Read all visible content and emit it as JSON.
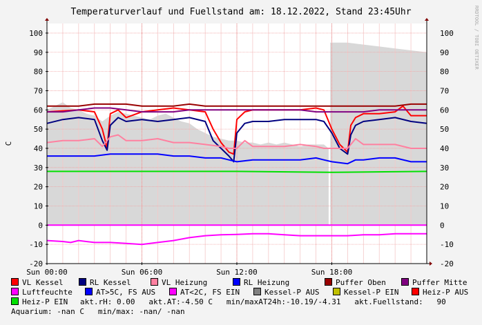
{
  "chart_data": {
    "type": "line",
    "title": "Temperaturverlauf und Fuellstand am: 18.12.2022, Stand 23:45Uhr",
    "ylabel": "C",
    "side_label": "RRDTOOL / TOBI OETIKER",
    "ylim": [
      -20,
      105
    ],
    "yticks": [
      -20,
      -10,
      0,
      10,
      20,
      30,
      40,
      50,
      60,
      70,
      80,
      90,
      100
    ],
    "xlim": [
      0,
      24
    ],
    "x_unit": "hours",
    "xticks": [
      {
        "x": 0,
        "label": "Sun 00:00"
      },
      {
        "x": 6,
        "label": "Sun 06:00"
      },
      {
        "x": 12,
        "label": "Sun 12:00"
      },
      {
        "x": 18,
        "label": "Sun 18:00"
      }
    ],
    "grid": true,
    "fill_series": {
      "name": "akt.Fuellstand",
      "color": "#d8d8d8",
      "points": [
        [
          0,
          60
        ],
        [
          0.5,
          62
        ],
        [
          1,
          64
        ],
        [
          1.5,
          61
        ],
        [
          2,
          60
        ],
        [
          2.5,
          58
        ],
        [
          3,
          57
        ],
        [
          3.5,
          54
        ],
        [
          4,
          57
        ],
        [
          4.5,
          59
        ],
        [
          5,
          58
        ],
        [
          5.5,
          57
        ],
        [
          6,
          56
        ],
        [
          6.5,
          55
        ],
        [
          7,
          57
        ],
        [
          7.5,
          58
        ],
        [
          8,
          56
        ],
        [
          8.5,
          54
        ],
        [
          9,
          53
        ],
        [
          9.5,
          50
        ],
        [
          10,
          48
        ],
        [
          10.5,
          46
        ],
        [
          11,
          45
        ],
        [
          11.5,
          44
        ],
        [
          12,
          44
        ],
        [
          12.5,
          43
        ],
        [
          13,
          43
        ],
        [
          13.5,
          42
        ],
        [
          14,
          43
        ],
        [
          14.5,
          42
        ],
        [
          15,
          43
        ],
        [
          15.5,
          42
        ],
        [
          16,
          41
        ],
        [
          16.5,
          42
        ],
        [
          17,
          42
        ],
        [
          17.5,
          42
        ],
        [
          17.8,
          40
        ],
        [
          17.8,
          0
        ],
        [
          17.9,
          0
        ],
        [
          17.9,
          95
        ],
        [
          18,
          95
        ],
        [
          19,
          95
        ],
        [
          20,
          94
        ],
        [
          21,
          93
        ],
        [
          22,
          92
        ],
        [
          23,
          91
        ],
        [
          24,
          90
        ]
      ]
    },
    "series": [
      {
        "name": "VL Kessel",
        "color": "#ff0000",
        "width": 2,
        "points": [
          [
            0,
            59
          ],
          [
            2,
            60
          ],
          [
            3,
            59
          ],
          [
            3.5,
            50
          ],
          [
            3.8,
            40
          ],
          [
            4,
            58
          ],
          [
            4.5,
            60
          ],
          [
            5,
            56
          ],
          [
            6,
            59
          ],
          [
            7,
            60
          ],
          [
            8,
            61
          ],
          [
            9,
            60
          ],
          [
            10,
            59
          ],
          [
            10.5,
            50
          ],
          [
            11,
            43
          ],
          [
            11.5,
            38
          ],
          [
            11.8,
            37
          ],
          [
            12,
            55
          ],
          [
            12.5,
            59
          ],
          [
            13,
            60
          ],
          [
            14,
            60
          ],
          [
            15,
            60
          ],
          [
            16,
            60
          ],
          [
            17,
            61
          ],
          [
            17.5,
            60
          ],
          [
            18,
            50
          ],
          [
            18.5,
            42
          ],
          [
            19,
            38
          ],
          [
            19.2,
            52
          ],
          [
            19.5,
            56
          ],
          [
            20,
            58
          ],
          [
            21,
            58
          ],
          [
            22,
            59
          ],
          [
            22.5,
            62
          ],
          [
            23,
            57
          ],
          [
            24,
            57
          ]
        ]
      },
      {
        "name": "RL Kessel",
        "color": "#000080",
        "width": 2,
        "points": [
          [
            0,
            53
          ],
          [
            1,
            55
          ],
          [
            2,
            56
          ],
          [
            3,
            55
          ],
          [
            3.5,
            44
          ],
          [
            3.8,
            39
          ],
          [
            4,
            52
          ],
          [
            4.5,
            56
          ],
          [
            5,
            54
          ],
          [
            6,
            55
          ],
          [
            7,
            54
          ],
          [
            8,
            55
          ],
          [
            9,
            56
          ],
          [
            10,
            54
          ],
          [
            10.5,
            44
          ],
          [
            11,
            40
          ],
          [
            11.5,
            36
          ],
          [
            11.8,
            33
          ],
          [
            12,
            48
          ],
          [
            12.5,
            53
          ],
          [
            13,
            54
          ],
          [
            14,
            54
          ],
          [
            15,
            55
          ],
          [
            16,
            55
          ],
          [
            17,
            55
          ],
          [
            17.5,
            54
          ],
          [
            18,
            48
          ],
          [
            18.5,
            40
          ],
          [
            19,
            37
          ],
          [
            19.2,
            47
          ],
          [
            19.5,
            52
          ],
          [
            20,
            54
          ],
          [
            21,
            55
          ],
          [
            22,
            56
          ],
          [
            23,
            54
          ],
          [
            24,
            53
          ]
        ]
      },
      {
        "name": "VL Heizung",
        "color": "#ff80a0",
        "width": 2,
        "points": [
          [
            0,
            43
          ],
          [
            1,
            44
          ],
          [
            2,
            44
          ],
          [
            3,
            45
          ],
          [
            3.5,
            41
          ],
          [
            4,
            46
          ],
          [
            4.5,
            47
          ],
          [
            5,
            44
          ],
          [
            6,
            44
          ],
          [
            7,
            45
          ],
          [
            8,
            43
          ],
          [
            9,
            43
          ],
          [
            10,
            42
          ],
          [
            11,
            41
          ],
          [
            11.5,
            40
          ],
          [
            12,
            40
          ],
          [
            12.5,
            44
          ],
          [
            13,
            41
          ],
          [
            14,
            41
          ],
          [
            15,
            41
          ],
          [
            16,
            42
          ],
          [
            17,
            41
          ],
          [
            17.5,
            40
          ],
          [
            18,
            40
          ],
          [
            19,
            40
          ],
          [
            19.5,
            45
          ],
          [
            20,
            42
          ],
          [
            21,
            42
          ],
          [
            22,
            42
          ],
          [
            23,
            40
          ],
          [
            24,
            40
          ]
        ]
      },
      {
        "name": "RL Heizung",
        "color": "#0000ff",
        "width": 2,
        "points": [
          [
            0,
            36
          ],
          [
            1,
            36
          ],
          [
            2,
            36
          ],
          [
            3,
            36
          ],
          [
            4,
            37
          ],
          [
            5,
            37
          ],
          [
            6,
            37
          ],
          [
            7,
            37
          ],
          [
            8,
            36
          ],
          [
            9,
            36
          ],
          [
            10,
            35
          ],
          [
            11,
            35
          ],
          [
            11.5,
            34
          ],
          [
            12,
            33
          ],
          [
            13,
            34
          ],
          [
            14,
            34
          ],
          [
            15,
            34
          ],
          [
            16,
            34
          ],
          [
            17,
            35
          ],
          [
            17.5,
            34
          ],
          [
            18,
            33
          ],
          [
            19,
            32
          ],
          [
            19.5,
            34
          ],
          [
            20,
            34
          ],
          [
            21,
            35
          ],
          [
            22,
            35
          ],
          [
            23,
            33
          ],
          [
            24,
            33
          ]
        ]
      },
      {
        "name": "Puffer Oben",
        "color": "#990000",
        "width": 2,
        "points": [
          [
            0,
            62
          ],
          [
            2,
            62
          ],
          [
            3,
            63
          ],
          [
            4,
            63
          ],
          [
            5,
            63
          ],
          [
            6,
            62
          ],
          [
            7,
            62
          ],
          [
            8,
            62
          ],
          [
            9,
            63
          ],
          [
            10,
            62
          ],
          [
            11,
            62
          ],
          [
            12,
            62
          ],
          [
            13,
            62
          ],
          [
            14,
            62
          ],
          [
            15,
            62
          ],
          [
            16,
            62
          ],
          [
            17,
            62
          ],
          [
            18,
            62
          ],
          [
            19,
            62
          ],
          [
            20,
            62
          ],
          [
            21,
            62
          ],
          [
            22,
            62
          ],
          [
            23,
            63
          ],
          [
            24,
            63
          ]
        ]
      },
      {
        "name": "Puffer Mitte",
        "color": "#800080",
        "width": 2,
        "points": [
          [
            0,
            59
          ],
          [
            1,
            59
          ],
          [
            2,
            60
          ],
          [
            3,
            61
          ],
          [
            4,
            61
          ],
          [
            5,
            60
          ],
          [
            6,
            59
          ],
          [
            7,
            59
          ],
          [
            8,
            59
          ],
          [
            9,
            60
          ],
          [
            10,
            60
          ],
          [
            11,
            60
          ],
          [
            12,
            60
          ],
          [
            13,
            60
          ],
          [
            14,
            60
          ],
          [
            15,
            60
          ],
          [
            16,
            60
          ],
          [
            17,
            59
          ],
          [
            18,
            59
          ],
          [
            19,
            59
          ],
          [
            20,
            59
          ],
          [
            21,
            60
          ],
          [
            22,
            60
          ],
          [
            23,
            60
          ],
          [
            24,
            60
          ]
        ]
      },
      {
        "name": "Heiz-P EIN",
        "color": "#00e000",
        "width": 2,
        "points": [
          [
            0,
            28
          ],
          [
            6,
            28
          ],
          [
            12,
            28
          ],
          [
            18,
            27.5
          ],
          [
            24,
            28
          ]
        ]
      },
      {
        "name": "Luftfeuchte",
        "color": "#ff00ff",
        "width": 2,
        "points": [
          [
            0,
            0
          ],
          [
            24,
            0
          ]
        ]
      },
      {
        "name": "akt.AT",
        "color": "#ff00ff",
        "width": 2,
        "points": [
          [
            0,
            -8
          ],
          [
            1,
            -8.5
          ],
          [
            1.5,
            -9
          ],
          [
            2,
            -8
          ],
          [
            3,
            -9
          ],
          [
            4,
            -9
          ],
          [
            5,
            -9.5
          ],
          [
            6,
            -10
          ],
          [
            7,
            -9
          ],
          [
            8,
            -8
          ],
          [
            9,
            -6.5
          ],
          [
            10,
            -5.5
          ],
          [
            11,
            -5
          ],
          [
            12,
            -4.8
          ],
          [
            13,
            -4.5
          ],
          [
            14,
            -4.5
          ],
          [
            15,
            -5
          ],
          [
            16,
            -5.5
          ],
          [
            17,
            -5.5
          ],
          [
            18,
            -5.5
          ],
          [
            19,
            -5.5
          ],
          [
            20,
            -5
          ],
          [
            21,
            -5
          ],
          [
            22,
            -4.5
          ],
          [
            23,
            -4.5
          ],
          [
            24,
            -4.5
          ]
        ]
      }
    ]
  },
  "legend": {
    "items": [
      {
        "label": "VL Kessel",
        "color": "#ff0000"
      },
      {
        "label": "RL Kessel",
        "color": "#000080"
      },
      {
        "label": "VL Heizung",
        "color": "#ff80a0"
      },
      {
        "label": "RL Heizung",
        "color": "#0000ff"
      },
      {
        "label": "Puffer Oben",
        "color": "#990000"
      },
      {
        "label": "Puffer Mitte",
        "color": "#800080"
      },
      {
        "label": "Luftfeuchte",
        "color": "#ff00ff"
      },
      {
        "label": "AT>5C, FS AUS",
        "color": "#0000ff"
      },
      {
        "label": "AT<2C, FS EIN",
        "color": "#ff00ff"
      },
      {
        "label": "Kessel-P AUS",
        "color": "#808080"
      },
      {
        "label": "Kessel-P EIN",
        "color": "#c0c000"
      },
      {
        "label": "Heiz-P AUS",
        "color": "#ff0000"
      },
      {
        "label": "Heiz-P EIN",
        "color": "#00e000"
      }
    ],
    "row3_text": "akt.rH: 0.00   akt.AT:-4.50 C   min/maxAT24h:-10.19/-4.31   akt.Fuellstand:   90",
    "row4_text": "Aquarium: -nan C   min/max: -nan/ -nan"
  }
}
